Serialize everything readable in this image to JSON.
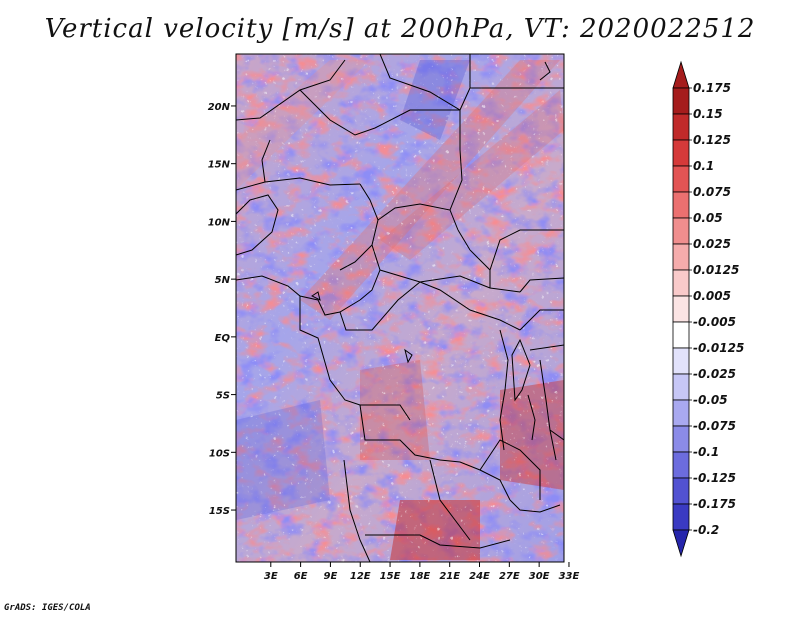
{
  "header": {
    "title": "Vertical velocity [m/s] at 200hPa, VT: 2020022512"
  },
  "footer": {
    "credit": "GrADS: IGES/COLA"
  },
  "map": {
    "lat_range": [
      -19.5,
      24.5
    ],
    "lon_range": [
      -0.5,
      32.5
    ],
    "lat_ticks": [
      {
        "value": 20,
        "label": "20N"
      },
      {
        "value": 15,
        "label": "15N"
      },
      {
        "value": 10,
        "label": "10N"
      },
      {
        "value": 5,
        "label": "5N"
      },
      {
        "value": 0,
        "label": "EQ"
      },
      {
        "value": -5,
        "label": "5S"
      },
      {
        "value": -10,
        "label": "10S"
      },
      {
        "value": -15,
        "label": "15S"
      }
    ],
    "lon_ticks": [
      {
        "value": 3,
        "label": "3E"
      },
      {
        "value": 6,
        "label": "6E"
      },
      {
        "value": 9,
        "label": "9E"
      },
      {
        "value": 12,
        "label": "12E"
      },
      {
        "value": 15,
        "label": "15E"
      },
      {
        "value": 18,
        "label": "18E"
      },
      {
        "value": 21,
        "label": "21E"
      },
      {
        "value": 24,
        "label": "24E"
      },
      {
        "value": 27,
        "label": "27E"
      },
      {
        "value": 30,
        "label": "30E"
      },
      {
        "value": 33,
        "label": "33E"
      }
    ]
  },
  "colorbar": {
    "levels": [
      {
        "label": "0.175",
        "color": "#a51c1c"
      },
      {
        "label": "0.15",
        "color": "#c02a2a"
      },
      {
        "label": "0.125",
        "color": "#d53a3a"
      },
      {
        "label": "0.1",
        "color": "#e25454"
      },
      {
        "label": "0.075",
        "color": "#eb7070"
      },
      {
        "label": "0.05",
        "color": "#f08e8e"
      },
      {
        "label": "0.025",
        "color": "#f5acac"
      },
      {
        "label": "0.0125",
        "color": "#f9caca"
      },
      {
        "label": "0.005",
        "color": "#fbe4e4"
      },
      {
        "label": "-0.005",
        "color": "#ffffff"
      },
      {
        "label": "-0.0125",
        "color": "#e2e2fb"
      },
      {
        "label": "-0.025",
        "color": "#c7c7f6"
      },
      {
        "label": "-0.05",
        "color": "#a9a9f0"
      },
      {
        "label": "-0.075",
        "color": "#8b8be8"
      },
      {
        "label": "-0.1",
        "color": "#6c6cde"
      },
      {
        "label": "-0.125",
        "color": "#5252d2"
      },
      {
        "label": "-0.175",
        "color": "#3a3ac2"
      },
      {
        "label": "-0.2",
        "color": "#2626ac"
      }
    ],
    "top_tip_color": "#a51c1c",
    "bottom_tip_color": "#2626ac"
  }
}
